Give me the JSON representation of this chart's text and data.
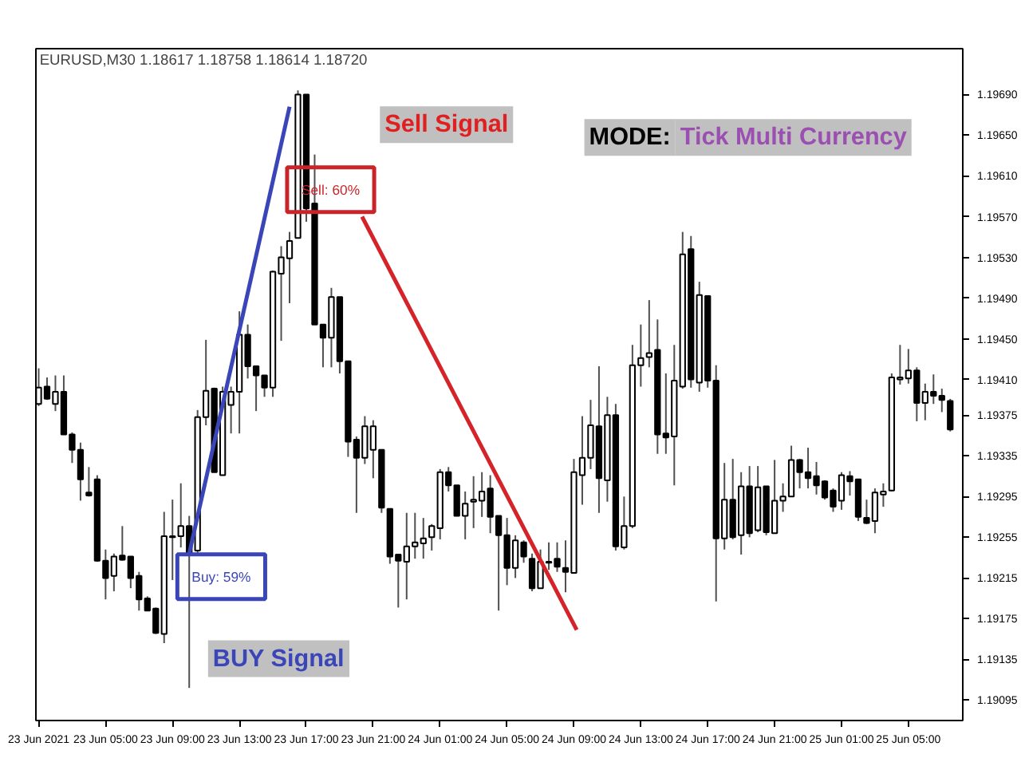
{
  "chart_data": {
    "type": "candlestick",
    "title": "EURUSD,M30  1.18617 1.18758 1.18614 1.18720",
    "x": [
      "2021-06-23T01:00",
      "2021-06-23T01:30",
      "2021-06-23T02:00",
      "2021-06-23T02:30",
      "2021-06-23T03:00",
      "2021-06-23T03:30",
      "2021-06-23T04:00",
      "2021-06-23T04:30",
      "2021-06-23T05:00",
      "2021-06-23T05:30",
      "2021-06-23T06:00",
      "2021-06-23T06:30",
      "2021-06-23T07:00",
      "2021-06-23T07:30",
      "2021-06-23T08:00",
      "2021-06-23T08:30",
      "2021-06-23T09:00",
      "2021-06-23T09:30",
      "2021-06-23T10:00",
      "2021-06-23T10:30",
      "2021-06-23T11:00",
      "2021-06-23T11:30",
      "2021-06-23T12:00",
      "2021-06-23T12:30",
      "2021-06-23T13:00",
      "2021-06-23T13:30",
      "2021-06-23T14:00",
      "2021-06-23T14:30",
      "2021-06-23T15:00",
      "2021-06-23T15:30",
      "2021-06-23T16:00",
      "2021-06-23T16:30",
      "2021-06-23T17:00",
      "2021-06-23T17:30",
      "2021-06-23T18:00",
      "2021-06-23T18:30",
      "2021-06-23T19:00",
      "2021-06-23T19:30",
      "2021-06-23T20:00",
      "2021-06-23T20:30",
      "2021-06-23T21:00",
      "2021-06-23T21:30",
      "2021-06-23T22:00",
      "2021-06-23T22:30",
      "2021-06-23T23:00",
      "2021-06-23T23:30",
      "2021-06-24T00:00",
      "2021-06-24T00:30",
      "2021-06-24T01:00",
      "2021-06-24T01:30",
      "2021-06-24T02:00",
      "2021-06-24T02:30",
      "2021-06-24T03:00",
      "2021-06-24T03:30",
      "2021-06-24T04:00",
      "2021-06-24T04:30",
      "2021-06-24T05:00",
      "2021-06-24T05:30",
      "2021-06-24T06:00",
      "2021-06-24T06:30",
      "2021-06-24T07:00",
      "2021-06-24T07:30",
      "2021-06-24T08:00",
      "2021-06-24T08:30",
      "2021-06-24T09:00",
      "2021-06-24T09:30",
      "2021-06-24T10:00",
      "2021-06-24T10:30",
      "2021-06-24T11:00",
      "2021-06-24T11:30",
      "2021-06-24T12:00",
      "2021-06-24T12:30",
      "2021-06-24T13:00",
      "2021-06-24T13:30",
      "2021-06-24T14:00",
      "2021-06-24T14:30",
      "2021-06-24T15:00",
      "2021-06-24T15:30",
      "2021-06-24T16:00",
      "2021-06-24T16:30",
      "2021-06-24T17:00",
      "2021-06-24T17:30",
      "2021-06-24T18:00",
      "2021-06-24T18:30",
      "2021-06-24T19:00",
      "2021-06-24T19:30",
      "2021-06-24T20:00",
      "2021-06-24T20:30",
      "2021-06-24T21:00",
      "2021-06-24T21:30",
      "2021-06-24T22:00",
      "2021-06-24T22:30",
      "2021-06-24T23:00",
      "2021-06-24T23:30",
      "2021-06-25T00:00",
      "2021-06-25T00:30",
      "2021-06-25T01:00",
      "2021-06-25T01:30",
      "2021-06-25T02:00",
      "2021-06-25T02:30",
      "2021-06-25T03:00",
      "2021-06-25T03:30",
      "2021-06-25T04:00",
      "2021-06-25T04:30",
      "2021-06-25T05:00",
      "2021-06-25T05:30",
      "2021-06-25T06:00",
      "2021-06-25T06:30",
      "2021-06-25T07:00",
      "2021-06-25T07:30"
    ],
    "ohlc": [
      [
        1.19386,
        1.19421,
        1.19384,
        1.19402
      ],
      [
        1.19403,
        1.19412,
        1.1939,
        1.19391
      ],
      [
        1.19386,
        1.19414,
        1.19379,
        1.19398
      ],
      [
        1.19398,
        1.19414,
        1.19356,
        1.19356
      ],
      [
        1.19356,
        1.19358,
        1.19328,
        1.19341
      ],
      [
        1.19341,
        1.19348,
        1.19291,
        1.19312
      ],
      [
        1.19299,
        1.19324,
        1.19295,
        1.19296
      ],
      [
        1.19312,
        1.19316,
        1.19231,
        1.19232
      ],
      [
        1.19232,
        1.19243,
        1.19194,
        1.19215
      ],
      [
        1.19217,
        1.19239,
        1.19202,
        1.19236
      ],
      [
        1.19237,
        1.19266,
        1.19232,
        1.19233
      ],
      [
        1.19236,
        1.19236,
        1.19205,
        1.19215
      ],
      [
        1.19217,
        1.19221,
        1.19183,
        1.19194
      ],
      [
        1.19195,
        1.19197,
        1.19183,
        1.19183
      ],
      [
        1.19185,
        1.19186,
        1.1916,
        1.19161
      ],
      [
        1.1916,
        1.1928,
        1.19151,
        1.19256
      ],
      [
        1.19255,
        1.19292,
        1.19213,
        1.19256
      ],
      [
        1.19256,
        1.19308,
        1.19245,
        1.19266
      ],
      [
        1.19266,
        1.19276,
        1.19107,
        1.19239
      ],
      [
        1.19242,
        1.1938,
        1.19239,
        1.19373
      ],
      [
        1.19373,
        1.19449,
        1.19365,
        1.19399
      ],
      [
        1.19401,
        1.19402,
        1.19319,
        1.19319
      ],
      [
        1.19316,
        1.19403,
        1.19316,
        1.19398
      ],
      [
        1.19385,
        1.19403,
        1.19357,
        1.19398
      ],
      [
        1.19398,
        1.19477,
        1.19357,
        1.19454
      ],
      [
        1.19454,
        1.19464,
        1.19411,
        1.19423
      ],
      [
        1.19423,
        1.19423,
        1.19379,
        1.19414
      ],
      [
        1.19414,
        1.19414,
        1.19393,
        1.19402
      ],
      [
        1.19402,
        1.19517,
        1.19393,
        1.19516
      ],
      [
        1.19514,
        1.19541,
        1.19448,
        1.1953
      ],
      [
        1.19529,
        1.19555,
        1.19485,
        1.19546
      ],
      [
        1.19549,
        1.19694,
        1.19549,
        1.1969
      ],
      [
        1.1969,
        1.1969,
        1.19565,
        1.19578
      ],
      [
        1.19583,
        1.19631,
        1.19464,
        1.19464
      ],
      [
        1.19464,
        1.19464,
        1.19422,
        1.19451
      ],
      [
        1.19451,
        1.195,
        1.19422,
        1.19491
      ],
      [
        1.19491,
        1.19491,
        1.19416,
        1.19428
      ],
      [
        1.19428,
        1.19428,
        1.19334,
        1.19349
      ],
      [
        1.19351,
        1.19354,
        1.19279,
        1.19333
      ],
      [
        1.19333,
        1.19374,
        1.19327,
        1.19364
      ],
      [
        1.19341,
        1.1937,
        1.19313,
        1.19364
      ],
      [
        1.19341,
        1.19341,
        1.19279,
        1.19284
      ],
      [
        1.19283,
        1.19283,
        1.19229,
        1.19236
      ],
      [
        1.19238,
        1.19238,
        1.19186,
        1.19232
      ],
      [
        1.19231,
        1.19279,
        1.19194,
        1.19246
      ],
      [
        1.19246,
        1.19279,
        1.19234,
        1.1925
      ],
      [
        1.19249,
        1.19274,
        1.19234,
        1.19254
      ],
      [
        1.19255,
        1.19268,
        1.19242,
        1.19266
      ],
      [
        1.19264,
        1.19322,
        1.19253,
        1.19319
      ],
      [
        1.19319,
        1.19324,
        1.193,
        1.19306
      ],
      [
        1.19306,
        1.19306,
        1.19276,
        1.19276
      ],
      [
        1.19276,
        1.193,
        1.19253,
        1.19288
      ],
      [
        1.1929,
        1.19315,
        1.19264,
        1.19292
      ],
      [
        1.19291,
        1.19319,
        1.19275,
        1.193
      ],
      [
        1.19303,
        1.19316,
        1.19259,
        1.19275
      ],
      [
        1.19276,
        1.19276,
        1.19183,
        1.19257
      ],
      [
        1.19257,
        1.19274,
        1.19208,
        1.19225
      ],
      [
        1.19225,
        1.19257,
        1.19215,
        1.19252
      ],
      [
        1.1925,
        1.19252,
        1.1923,
        1.19236
      ],
      [
        1.19234,
        1.19239,
        1.19202,
        1.19205
      ],
      [
        1.19205,
        1.19243,
        1.19205,
        1.19231
      ],
      [
        1.1923,
        1.1925,
        1.19223,
        1.19231
      ],
      [
        1.19234,
        1.1925,
        1.19221,
        1.19226
      ],
      [
        1.19225,
        1.19252,
        1.19201,
        1.19221
      ],
      [
        1.1922,
        1.19332,
        1.1922,
        1.19319
      ],
      [
        1.19316,
        1.19374,
        1.19287,
        1.19333
      ],
      [
        1.19333,
        1.1939,
        1.19322,
        1.19365
      ],
      [
        1.19364,
        1.19423,
        1.19279,
        1.19313
      ],
      [
        1.19311,
        1.19393,
        1.1929,
        1.19375
      ],
      [
        1.19375,
        1.19386,
        1.19242,
        1.19246
      ],
      [
        1.19245,
        1.19295,
        1.19243,
        1.19266
      ],
      [
        1.19266,
        1.19444,
        1.19264,
        1.19424
      ],
      [
        1.19424,
        1.19464,
        1.19403,
        1.19431
      ],
      [
        1.19432,
        1.19488,
        1.19422,
        1.19436
      ],
      [
        1.19439,
        1.19469,
        1.19337,
        1.19356
      ],
      [
        1.19357,
        1.19416,
        1.19337,
        1.19353
      ],
      [
        1.19354,
        1.19444,
        1.19306,
        1.19409
      ],
      [
        1.19403,
        1.19555,
        1.19401,
        1.19533
      ],
      [
        1.19538,
        1.19551,
        1.19402,
        1.1941
      ],
      [
        1.19407,
        1.19506,
        1.19398,
        1.19493
      ],
      [
        1.19492,
        1.19492,
        1.19402,
        1.19409
      ],
      [
        1.19409,
        1.19424,
        1.19192,
        1.19254
      ],
      [
        1.19254,
        1.19328,
        1.19243,
        1.19292
      ],
      [
        1.19292,
        1.19332,
        1.19253,
        1.19255
      ],
      [
        1.19257,
        1.19319,
        1.19238,
        1.19305
      ],
      [
        1.19305,
        1.19325,
        1.19255,
        1.19259
      ],
      [
        1.19262,
        1.19325,
        1.1926,
        1.19304
      ],
      [
        1.19305,
        1.19305,
        1.19257,
        1.1926
      ],
      [
        1.19259,
        1.19331,
        1.19259,
        1.19291
      ],
      [
        1.19291,
        1.19308,
        1.1928,
        1.19295
      ],
      [
        1.19295,
        1.19345,
        1.19295,
        1.19331
      ],
      [
        1.19331,
        1.19332,
        1.19303,
        1.19319
      ],
      [
        1.19319,
        1.19343,
        1.19303,
        1.19313
      ],
      [
        1.19315,
        1.19329,
        1.19297,
        1.19306
      ],
      [
        1.1931,
        1.19311,
        1.19292,
        1.19294
      ],
      [
        1.19301,
        1.19303,
        1.1928,
        1.19285
      ],
      [
        1.19291,
        1.19319,
        1.19282,
        1.19316
      ],
      [
        1.19315,
        1.1932,
        1.19296,
        1.1931
      ],
      [
        1.19312,
        1.19312,
        1.19271,
        1.19275
      ],
      [
        1.19274,
        1.19292,
        1.19268,
        1.19269
      ],
      [
        1.19271,
        1.19303,
        1.19259,
        1.19299
      ],
      [
        1.19297,
        1.19308,
        1.19285,
        1.193
      ],
      [
        1.19301,
        1.19416,
        1.193,
        1.19412
      ],
      [
        1.1941,
        1.19444,
        1.19405,
        1.19412
      ],
      [
        1.19411,
        1.1944,
        1.19406,
        1.19419
      ],
      [
        1.19419,
        1.19422,
        1.19369,
        1.19387
      ],
      [
        1.19387,
        1.19406,
        1.1937,
        1.19398
      ],
      [
        1.19398,
        1.19415,
        1.19386,
        1.19394
      ],
      [
        1.19394,
        1.19401,
        1.19378,
        1.1939
      ],
      [
        1.19389,
        1.19391,
        1.19359,
        1.19361
      ]
    ],
    "series": [
      {
        "type": "line",
        "color": "#3a45b8",
        "x": [
          "2021-06-23T10:00",
          "2021-06-23T16:00"
        ],
        "values": [
          1.19239,
          1.19678
        ]
      },
      {
        "type": "line",
        "color": "#d4242a",
        "x": [
          "2021-06-23T20:20",
          "2021-06-24T09:10"
        ],
        "values": [
          1.1957,
          1.19164
        ]
      }
    ],
    "annotations": [
      "Buy: 59%",
      "Sell: 60%",
      "Sell Signal",
      "MODE:",
      "Tick Multi Currency",
      "BUY Signal"
    ],
    "xlim": [
      "2021-06-23T00:50",
      "2021-06-25T08:15"
    ],
    "xticks": [
      {
        "value": "2021-06-23T01:00",
        "label": "23 Jun 2021"
      },
      {
        "value": "2021-06-23T05:00",
        "label": "23 Jun 05:00"
      },
      {
        "value": "2021-06-23T09:00",
        "label": "23 Jun 09:00"
      },
      {
        "value": "2021-06-23T13:00",
        "label": "23 Jun 13:00"
      },
      {
        "value": "2021-06-23T17:00",
        "label": "23 Jun 17:00"
      },
      {
        "value": "2021-06-23T21:00",
        "label": "23 Jun 21:00"
      },
      {
        "value": "2021-06-24T01:00",
        "label": "24 Jun 01:00"
      },
      {
        "value": "2021-06-24T05:00",
        "label": "24 Jun 05:00"
      },
      {
        "value": "2021-06-24T09:00",
        "label": "24 Jun 09:00"
      },
      {
        "value": "2021-06-24T13:00",
        "label": "24 Jun 13:00"
      },
      {
        "value": "2021-06-24T17:00",
        "label": "24 Jun 17:00"
      },
      {
        "value": "2021-06-24T21:00",
        "label": "24 Jun 21:00"
      },
      {
        "value": "2021-06-25T01:00",
        "label": "25 Jun 01:00"
      },
      {
        "value": "2021-06-25T05:00",
        "label": "25 Jun 05:00"
      }
    ],
    "ylim": [
      1.19075,
      1.19735
    ],
    "yticks": [
      {
        "value": 1.1969,
        "label": "1.19690"
      },
      {
        "value": 1.1965,
        "label": "1.19650"
      },
      {
        "value": 1.1961,
        "label": "1.19610"
      },
      {
        "value": 1.1957,
        "label": "1.19570"
      },
      {
        "value": 1.1953,
        "label": "1.19530"
      },
      {
        "value": 1.1949,
        "label": "1.19490"
      },
      {
        "value": 1.1945,
        "label": "1.19450"
      },
      {
        "value": 1.1941,
        "label": "1.19410"
      },
      {
        "value": 1.19375,
        "label": "1.19375"
      },
      {
        "value": 1.19335,
        "label": "1.19335"
      },
      {
        "value": 1.19295,
        "label": "1.19295"
      },
      {
        "value": 1.19255,
        "label": "1.19255"
      },
      {
        "value": 1.19215,
        "label": "1.19215"
      },
      {
        "value": 1.19175,
        "label": "1.19175"
      },
      {
        "value": 1.19135,
        "label": "1.19135"
      },
      {
        "value": 1.19095,
        "label": "1.19095"
      }
    ],
    "grid": false
  }
}
